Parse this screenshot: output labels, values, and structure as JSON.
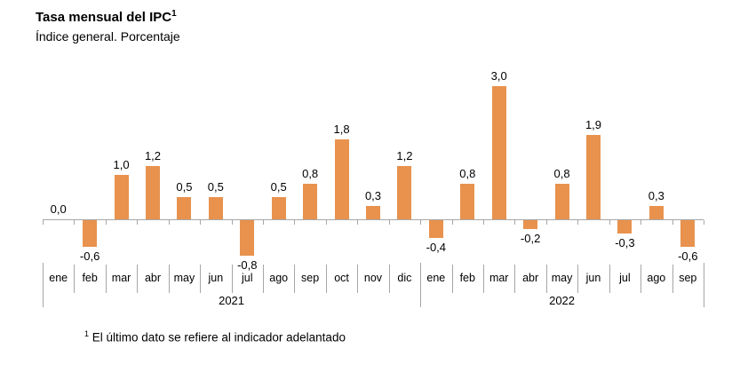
{
  "header": {
    "title": "Tasa mensual del IPC",
    "title_superscript": "1",
    "subtitle": "Índice general. Porcentaje"
  },
  "footer": {
    "footnote_superscript": "1",
    "footnote_text": "El último dato se refiere al indicador adelantado"
  },
  "colors": {
    "bar": "#E8924E",
    "axis": "#A6A6A6",
    "text": "#000000"
  },
  "chart_data": {
    "type": "bar",
    "title": "Tasa mensual del IPC",
    "subtitle": "Índice general. Porcentaje",
    "unit": "porcentaje",
    "categories": [
      "ene",
      "feb",
      "mar",
      "abr",
      "may",
      "jun",
      "jul",
      "ago",
      "sep",
      "oct",
      "nov",
      "dic",
      "ene",
      "feb",
      "mar",
      "abr",
      "may",
      "jun",
      "jul",
      "ago",
      "sep"
    ],
    "values": [
      0.0,
      -0.6,
      1.0,
      1.2,
      0.5,
      0.5,
      -0.8,
      0.5,
      0.8,
      1.8,
      0.3,
      1.2,
      -0.4,
      0.8,
      3.0,
      -0.2,
      0.8,
      1.9,
      -0.3,
      0.3,
      -0.6
    ],
    "value_labels": [
      "0,0",
      "-0,6",
      "1,0",
      "1,2",
      "0,5",
      "0,5",
      "-0,8",
      "0,5",
      "0,8",
      "1,8",
      "0,3",
      "1,2",
      "-0,4",
      "0,8",
      "3,0",
      "-0,2",
      "0,8",
      "1,9",
      "-0,3",
      "0,3",
      "-0,6"
    ],
    "groups": [
      {
        "label": "2021",
        "count": 12
      },
      {
        "label": "2022",
        "count": 9
      }
    ],
    "xlabel": "",
    "ylabel": "",
    "ylim": [
      -1.0,
      3.2
    ],
    "grid": false,
    "legend": false,
    "footnote": "El último dato se refiere al indicador adelantado"
  }
}
